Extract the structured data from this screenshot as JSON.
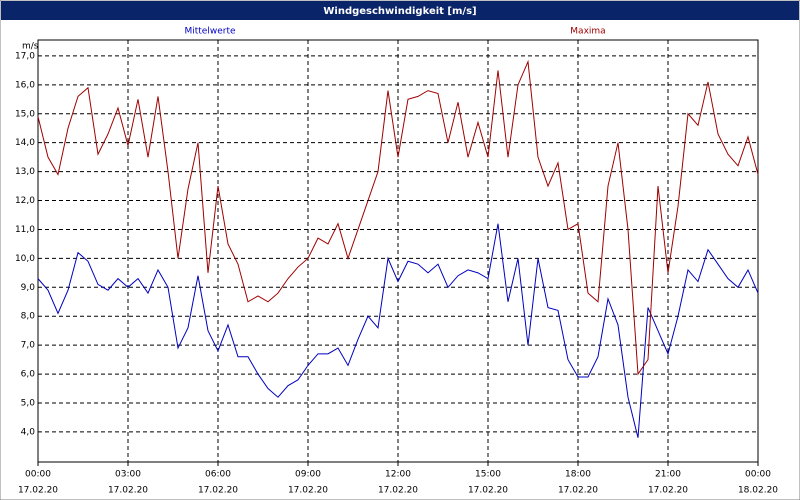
{
  "chart_data": {
    "type": "line",
    "title": "Windgeschwindigkeit [m/s]",
    "ylabel": "m/s",
    "x": [
      0,
      20,
      40,
      60,
      80,
      100,
      120,
      140,
      160,
      180,
      200,
      220,
      240,
      260,
      280,
      300,
      320,
      340,
      360,
      380,
      400,
      420,
      440,
      460,
      480,
      500,
      520,
      540,
      560,
      580,
      600,
      620,
      640,
      660,
      680,
      700,
      720,
      740,
      760,
      780,
      800,
      820,
      840,
      860,
      880,
      900,
      920,
      940,
      960,
      980,
      1000,
      1020,
      1040,
      1060,
      1080,
      1100,
      1120,
      1140,
      1160,
      1180,
      1200,
      1220,
      1240,
      1260,
      1280,
      1300,
      1320,
      1340,
      1360,
      1380,
      1400,
      1420,
      1440
    ],
    "series": [
      {
        "name": "Mittelwerte",
        "color": "#0000c0",
        "values": [
          9.3,
          8.9,
          8.1,
          8.9,
          10.2,
          9.9,
          9.1,
          8.9,
          9.3,
          9.0,
          9.3,
          8.8,
          9.6,
          9.0,
          6.9,
          7.6,
          9.4,
          7.5,
          6.8,
          7.7,
          6.6,
          6.6,
          6.0,
          5.5,
          5.2,
          5.6,
          5.8,
          6.3,
          6.7,
          6.7,
          6.9,
          6.3,
          7.2,
          8.0,
          7.6,
          10.0,
          9.2,
          9.9,
          9.8,
          9.5,
          9.8,
          9.0,
          9.4,
          9.6,
          9.5,
          9.3,
          11.2,
          8.5,
          10.0,
          7.0,
          10.0,
          8.3,
          8.2,
          6.5,
          5.9,
          5.9,
          6.6,
          8.6,
          7.7,
          5.2,
          3.8,
          8.3,
          7.5,
          6.7,
          8.0,
          9.6,
          9.2,
          10.3,
          9.8,
          9.3,
          9.0,
          9.6,
          8.8
        ]
      },
      {
        "name": "Maxima",
        "color": "#a00000",
        "values": [
          14.9,
          13.5,
          12.9,
          14.5,
          15.6,
          15.9,
          13.6,
          14.3,
          15.2,
          13.9,
          15.5,
          13.5,
          15.6,
          13.0,
          10.0,
          12.4,
          14.0,
          9.5,
          12.5,
          10.5,
          9.8,
          8.5,
          8.7,
          8.5,
          8.8,
          9.3,
          9.7,
          10.0,
          10.7,
          10.5,
          11.2,
          10.0,
          11.0,
          12.0,
          13.0,
          15.8,
          13.5,
          15.5,
          15.6,
          15.8,
          15.7,
          14.0,
          15.4,
          13.5,
          14.7,
          13.5,
          16.5,
          13.5,
          16.0,
          16.8,
          13.5,
          12.5,
          13.3,
          11.0,
          11.2,
          8.8,
          8.5,
          12.5,
          14.0,
          11.0,
          6.0,
          6.5,
          12.5,
          9.5,
          11.8,
          15.0,
          14.6,
          16.1,
          14.3,
          13.6,
          13.2,
          14.2,
          12.9
        ]
      }
    ],
    "xlim": [
      0,
      1440
    ],
    "xticks": [
      {
        "value": 0,
        "label": "00:00"
      },
      {
        "value": 180,
        "label": "03:00"
      },
      {
        "value": 360,
        "label": "06:00"
      },
      {
        "value": 540,
        "label": "09:00"
      },
      {
        "value": 720,
        "label": "12:00"
      },
      {
        "value": 900,
        "label": "15:00"
      },
      {
        "value": 1080,
        "label": "18:00"
      },
      {
        "value": 1260,
        "label": "21:00"
      },
      {
        "value": 1440,
        "label": "00:00"
      }
    ],
    "xtick_dates": [
      "17.02.20",
      "17.02.20",
      "17.02.20",
      "17.02.20",
      "17.02.20",
      "17.02.20",
      "17.02.20",
      "17.02.20",
      "18.02.20"
    ],
    "ylim": [
      2.96,
      17.55
    ],
    "yticks": [
      {
        "value": 4,
        "label": "4,0"
      },
      {
        "value": 5,
        "label": "5,0"
      },
      {
        "value": 6,
        "label": "6,0"
      },
      {
        "value": 7,
        "label": "7,0"
      },
      {
        "value": 8,
        "label": "8,0"
      },
      {
        "value": 9,
        "label": "9,0"
      },
      {
        "value": 10,
        "label": "10,0"
      },
      {
        "value": 11,
        "label": "11,0"
      },
      {
        "value": 12,
        "label": "12,0"
      },
      {
        "value": 13,
        "label": "13,0"
      },
      {
        "value": 14,
        "label": "14,0"
      },
      {
        "value": 15,
        "label": "15,0"
      },
      {
        "value": 16,
        "label": "16,0"
      },
      {
        "value": 17,
        "label": "17,0"
      }
    ],
    "grid": true
  }
}
